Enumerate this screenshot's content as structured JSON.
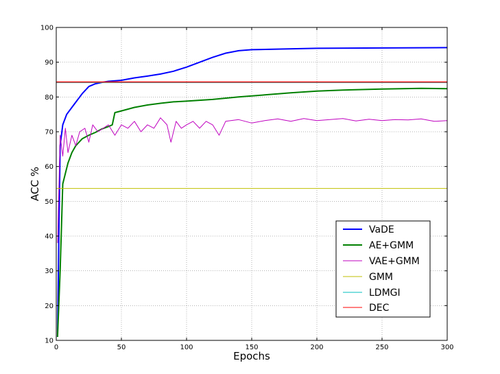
{
  "chart_data": {
    "type": "line",
    "xlabel": "Epochs",
    "ylabel": "ACC %",
    "xlim": [
      0,
      300
    ],
    "ylim": [
      10,
      100
    ],
    "xticks": [
      "0",
      "50",
      "100",
      "150",
      "200",
      "250",
      "300"
    ],
    "yticks": [
      "10",
      "20",
      "30",
      "40",
      "50",
      "60",
      "70",
      "80",
      "90",
      "100"
    ],
    "grid": true,
    "legend_position": "lower-right",
    "series": [
      {
        "name": "VaDE",
        "color": "#0000ff",
        "x": [
          1,
          2,
          3,
          5,
          8,
          12,
          16,
          20,
          25,
          30,
          35,
          40,
          50,
          60,
          70,
          80,
          90,
          100,
          110,
          120,
          130,
          140,
          150,
          175,
          200,
          250,
          300
        ],
        "y": [
          11,
          40,
          66,
          72,
          75,
          77,
          79,
          81,
          83,
          83.8,
          84.2,
          84.5,
          84.8,
          85.5,
          86,
          86.6,
          87.4,
          88.6,
          90,
          91.4,
          92.6,
          93.3,
          93.6,
          93.8,
          94.0,
          94.1,
          94.2
        ]
      },
      {
        "name": "AE+GMM",
        "color": "#008000",
        "x": [
          1,
          3,
          5,
          7,
          9,
          12,
          15,
          20,
          25,
          30,
          35,
          40,
          43,
          45,
          50,
          60,
          70,
          80,
          90,
          100,
          120,
          140,
          160,
          180,
          200,
          220,
          250,
          280,
          300
        ],
        "y": [
          11,
          30,
          55,
          58,
          61,
          64,
          66,
          68,
          69,
          69.8,
          70.8,
          71.5,
          72,
          75.5,
          76,
          77,
          77.7,
          78.2,
          78.6,
          78.8,
          79.3,
          80,
          80.6,
          81.2,
          81.7,
          82,
          82.3,
          82.5,
          82.4
        ]
      },
      {
        "name": "VAE+GMM",
        "color": "#bf00bf",
        "x": [
          1,
          3,
          5,
          7,
          9,
          12,
          15,
          18,
          22,
          25,
          28,
          32,
          36,
          40,
          45,
          50,
          55,
          60,
          65,
          70,
          75,
          80,
          85,
          88,
          92,
          96,
          100,
          105,
          110,
          115,
          120,
          125,
          130,
          140,
          150,
          160,
          170,
          180,
          190,
          200,
          210,
          220,
          230,
          240,
          250,
          260,
          270,
          280,
          290,
          300
        ],
        "y": [
          38,
          69,
          63,
          71,
          64,
          69,
          66,
          70,
          71,
          67,
          72,
          70,
          71,
          72,
          69,
          72,
          71,
          73,
          70,
          72,
          71,
          74,
          72,
          67,
          73,
          71,
          72,
          73,
          71,
          73,
          72,
          69,
          73,
          73.5,
          72.5,
          73.2,
          73.7,
          73,
          73.8,
          73.2,
          73.5,
          73.8,
          73.1,
          73.6,
          73.2,
          73.5,
          73.4,
          73.7,
          73.0,
          73.2
        ]
      },
      {
        "name": "GMM",
        "color": "#bfbf00",
        "x": [
          0,
          300
        ],
        "y": [
          53.7,
          53.7
        ]
      },
      {
        "name": "LDMGI",
        "color": "#00bfbf",
        "x": [
          0,
          300
        ],
        "y": [
          84.2,
          84.2
        ]
      },
      {
        "name": "DEC",
        "color": "#ff0000",
        "x": [
          0,
          300
        ],
        "y": [
          84.3,
          84.3
        ]
      }
    ]
  }
}
